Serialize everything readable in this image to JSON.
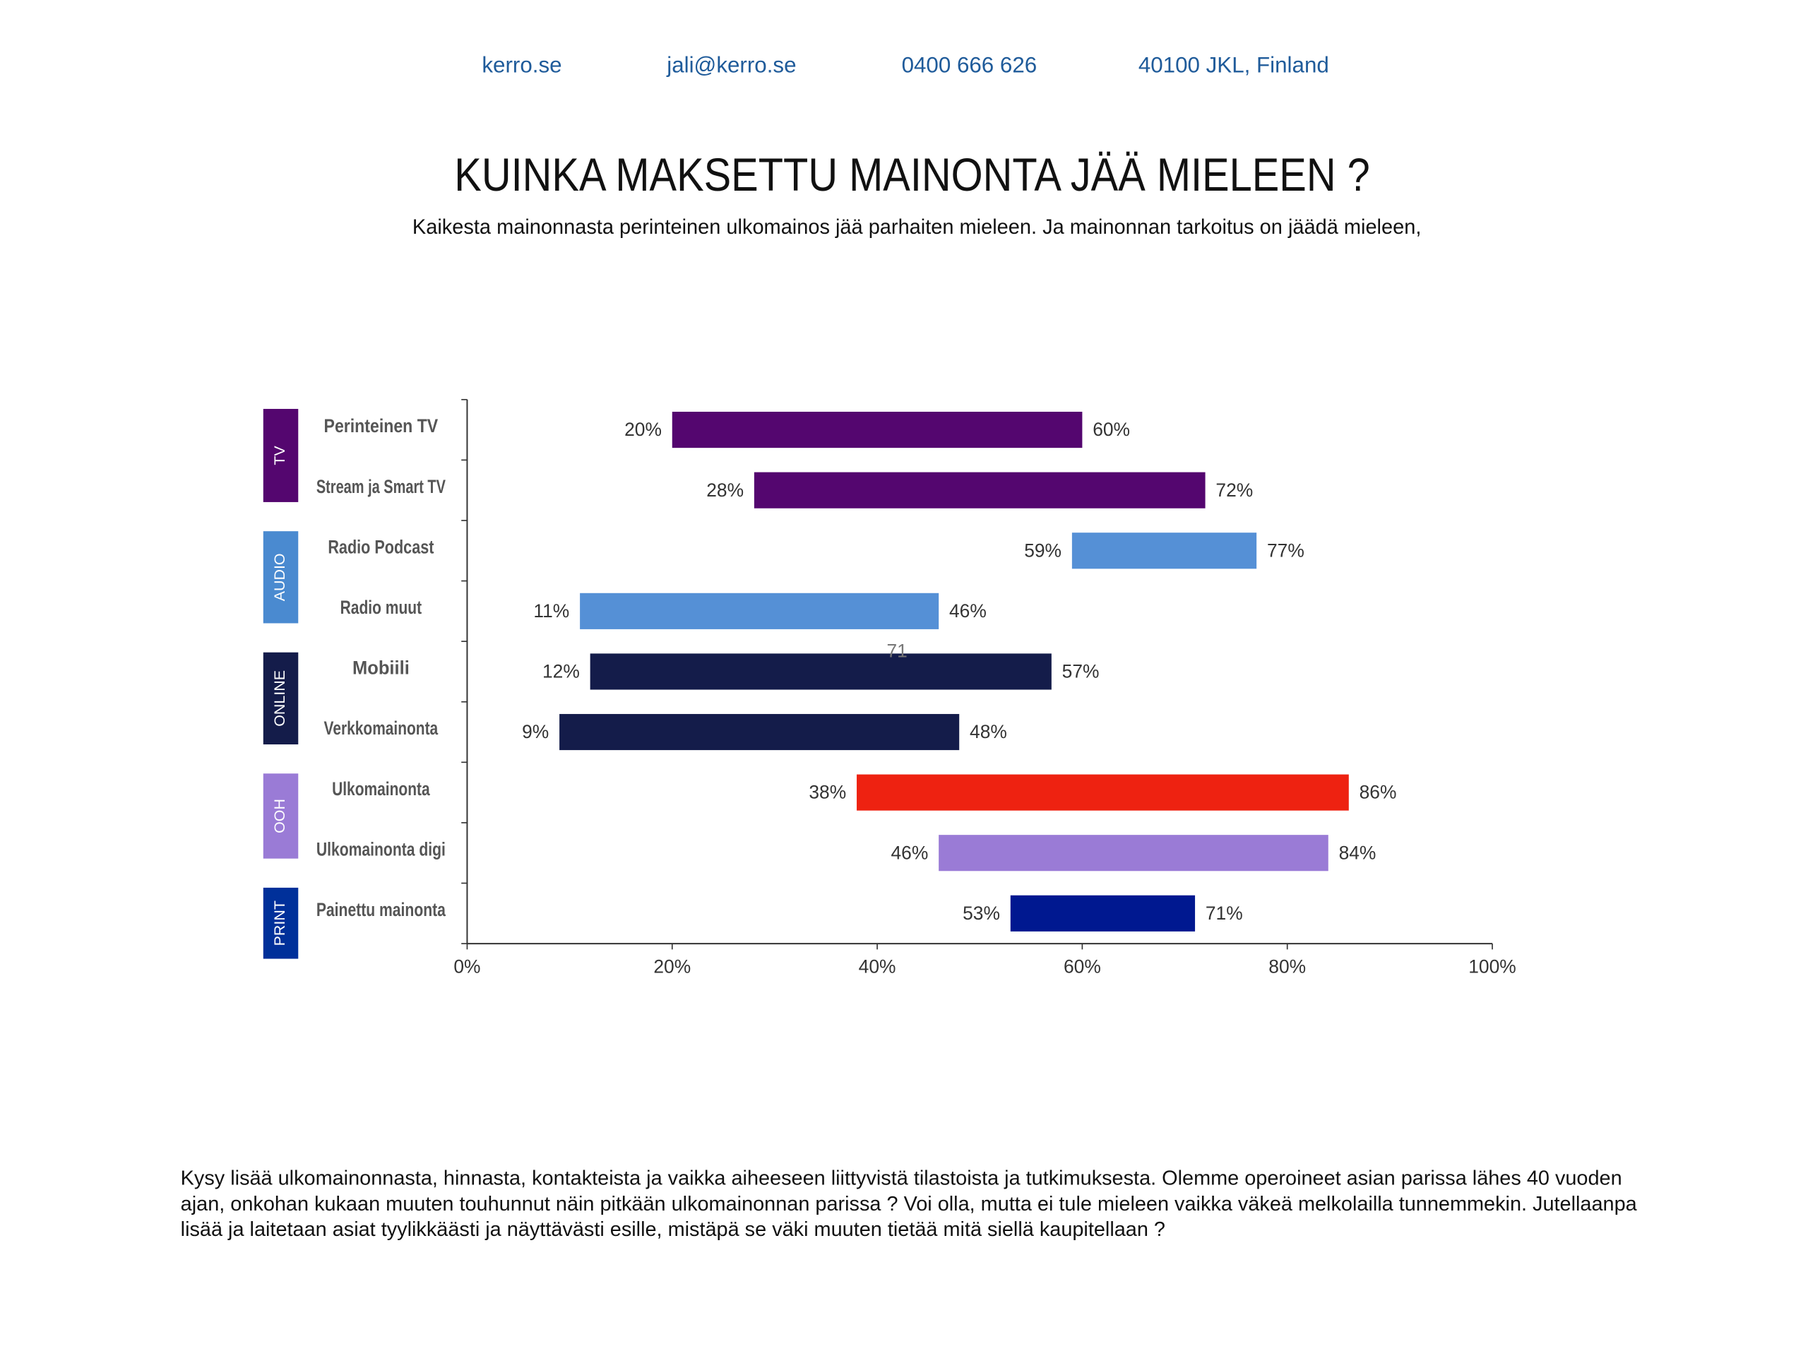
{
  "header": {
    "contacts": [
      "kerro.se",
      "jali@kerro.se",
      "0400 666 626",
      "40100 JKL, Finland"
    ]
  },
  "chart_data": {
    "type": "range-bar",
    "title": "KUINKA MAKSETTU MAINONTA JÄÄ MIELEEN ?",
    "subtitle": "Kaikesta mainonnasta perinteinen ulkomainos jää parhaiten mieleen. Ja mainonnan tarkoitus on jäädä mieleen,",
    "categories": [
      "Perinteinen TV",
      "Stream ja Smart TV",
      "Radio Podcast",
      "Radio muut",
      "Mobiili",
      "Verkkomainonta",
      "Ulkomainonta",
      "Ulkomainonta digi",
      "Painettu mainonta"
    ],
    "start": [
      20,
      28,
      59,
      11,
      12,
      9,
      38,
      46,
      53
    ],
    "end": [
      60,
      72,
      77,
      46,
      57,
      48,
      86,
      84,
      71
    ],
    "start_labels": [
      "20%",
      "28%",
      "59%",
      "11%",
      "12%",
      "9%",
      "38%",
      "46%",
      "53%"
    ],
    "end_labels": [
      "60%",
      "72%",
      "77%",
      "46%",
      "57%",
      "48%",
      "86%",
      "84%",
      "71%"
    ],
    "colors": [
      "#54066f",
      "#54066f",
      "#5590d6",
      "#5590d6",
      "#141c4a",
      "#141c4a",
      "#ee2211",
      "#9a7bd6",
      "#001890"
    ],
    "groups": [
      {
        "label": "TV",
        "color": "#54066f"
      },
      {
        "label": "AUDIO",
        "color": "#4a8ad0"
      },
      {
        "label": "ONLINE",
        "color": "#141c4a"
      },
      {
        "label": "OOH",
        "color": "#9a7bd6"
      },
      {
        "label": "PRINT",
        "color": "#00309a"
      }
    ],
    "annotation": "71",
    "xlim": [
      0,
      100
    ],
    "xticks": [
      {
        "value": 0,
        "label": "0%"
      },
      {
        "value": 20,
        "label": "20%"
      },
      {
        "value": 40,
        "label": "40%"
      },
      {
        "value": 60,
        "label": "60%"
      },
      {
        "value": 80,
        "label": "80%"
      },
      {
        "value": 100,
        "label": "100%"
      }
    ]
  },
  "footer": {
    "text": "Kysy lisää ulkomainonnasta, hinnasta, kontakteista ja vaikka aiheeseen liittyvistä tilastoista ja tutkimuksesta. Olemme operoineet asian parissa lähes 40 vuoden ajan, onkohan kukaan muuten touhunnut näin pitkään ulkomainonnan parissa ? Voi olla, mutta ei tule mieleen vaikka väkeä melkolailla tunnemmekin. Jutellaanpa lisää ja laitetaan asiat tyylikkäästi ja näyttävästi esille, mistäpä se väki muuten tietää mitä siellä kaupitellaan ?"
  }
}
